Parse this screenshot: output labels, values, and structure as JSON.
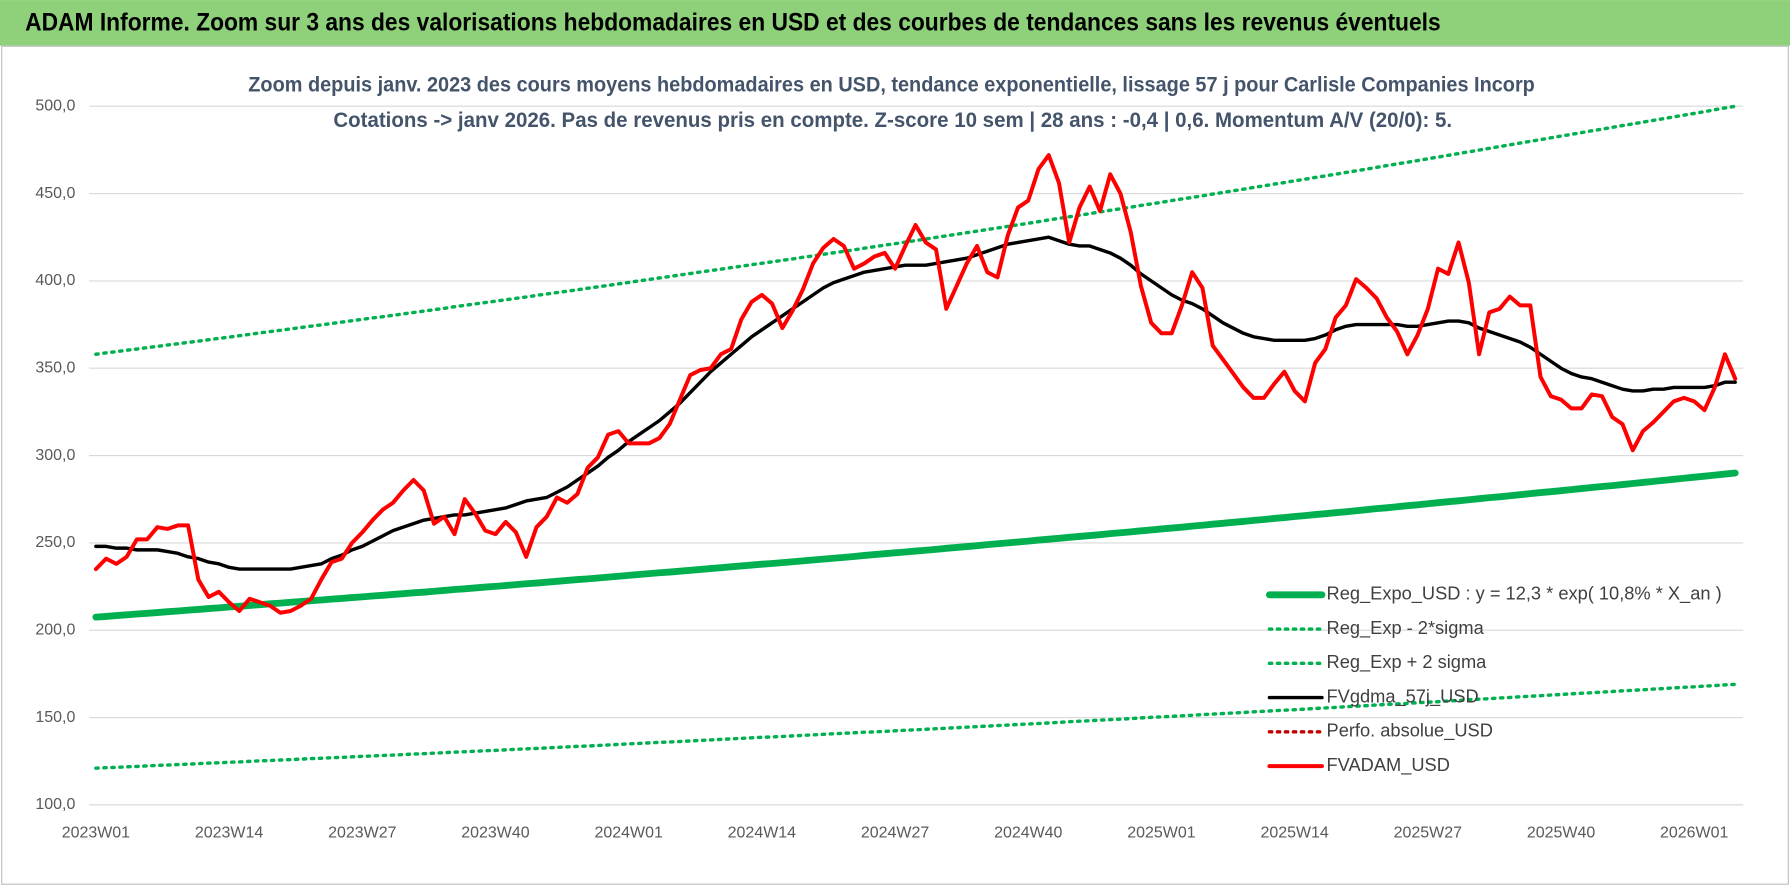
{
  "header": {
    "title": "ADAM Informe. Zoom sur 3 ans des valorisations hebdomadaires en USD et des courbes de tendances sans les revenus éventuels"
  },
  "chart_data": {
    "type": "line",
    "title": "Zoom depuis janv. 2023 des cours moyens hebdomadaires en USD, tendance exponentielle, lissage 57 j pour Carlisle Companies Incorp",
    "subtitle": "Cotations -> janv 2026. Pas de revenus pris en compte. Z-score 10 sem | 28 ans : -0,4 | 0,6. Momentum A/V (20/0): 5.",
    "categories": [
      "2023W01",
      null,
      null,
      null,
      null,
      null,
      null,
      null,
      null,
      null,
      null,
      null,
      null,
      "2023W14",
      null,
      null,
      null,
      null,
      null,
      null,
      null,
      null,
      null,
      null,
      null,
      null,
      "2023W27",
      null,
      null,
      null,
      null,
      null,
      null,
      null,
      null,
      null,
      null,
      null,
      null,
      "2023W40",
      null,
      null,
      null,
      null,
      null,
      null,
      null,
      null,
      null,
      null,
      null,
      null,
      "2024W01",
      null,
      null,
      null,
      null,
      null,
      null,
      null,
      null,
      null,
      null,
      null,
      null,
      "2024W14",
      null,
      null,
      null,
      null,
      null,
      null,
      null,
      null,
      null,
      null,
      null,
      null,
      "2024W27",
      null,
      null,
      null,
      null,
      null,
      null,
      null,
      null,
      null,
      null,
      null,
      null,
      "2024W40",
      null,
      null,
      null,
      null,
      null,
      null,
      null,
      null,
      null,
      null,
      null,
      null,
      "2025W01",
      null,
      null,
      null,
      null,
      null,
      null,
      null,
      null,
      null,
      null,
      null,
      null,
      "2025W14",
      null,
      null,
      null,
      null,
      null,
      null,
      null,
      null,
      null,
      null,
      null,
      null,
      "2025W27",
      null,
      null,
      null,
      null,
      null,
      null,
      null,
      null,
      null,
      null,
      null,
      null,
      "2025W40",
      null,
      null,
      null,
      null,
      null,
      null,
      null,
      null,
      null,
      null,
      null,
      null,
      "2026W01",
      null,
      null,
      null,
      null
    ],
    "ylim": [
      100,
      500
    ],
    "yticks": [
      {
        "value": 100,
        "label": "100,0"
      },
      {
        "value": 150,
        "label": "150,0"
      },
      {
        "value": 200,
        "label": "200,0"
      },
      {
        "value": 250,
        "label": "250,0"
      },
      {
        "value": 300,
        "label": "300,0"
      },
      {
        "value": 350,
        "label": "350,0"
      },
      {
        "value": 400,
        "label": "400,0"
      },
      {
        "value": 450,
        "label": "450,0"
      },
      {
        "value": 500,
        "label": "500,0"
      }
    ],
    "grid": true,
    "legend": "lower right",
    "series": [
      {
        "name": "Reg_Expo_USD : y = 12,3 * exp( 10,8% * X_an )",
        "color": "#00b050",
        "style": "thick",
        "values": [
          207.5,
          207.9,
          208.4,
          208.8,
          209.3,
          209.7,
          210.1,
          210.6,
          211.0,
          211.5,
          211.9,
          212.4,
          212.8,
          213.3,
          213.7,
          214.2,
          214.6,
          215.1,
          215.5,
          216.0,
          216.4,
          216.9,
          217.3,
          217.8,
          218.2,
          218.7,
          219.1,
          219.6,
          220.0,
          220.5,
          220.9,
          221.4,
          221.8,
          222.3,
          222.8,
          223.3,
          223.7,
          224.2,
          224.7,
          225.1,
          225.6,
          226.1,
          226.6,
          227.0,
          227.5,
          228.0,
          228.5,
          229.0,
          229.4,
          229.9,
          230.4,
          230.9,
          231.4,
          231.9,
          232.4,
          232.9,
          233.3,
          233.8,
          234.3,
          234.8,
          235.3,
          235.8,
          236.3,
          236.8,
          237.3,
          237.8,
          238.2,
          238.7,
          239.2,
          239.7,
          240.2,
          240.7,
          241.2,
          241.7,
          242.2,
          242.8,
          243.3,
          243.8,
          244.3,
          244.8,
          245.3,
          245.8,
          246.3,
          246.9,
          247.4,
          247.9,
          248.4,
          249.0,
          249.5,
          250.0,
          250.5,
          251.0,
          251.6,
          252.1,
          252.6,
          253.2,
          253.7,
          254.2,
          254.7,
          255.3,
          255.8,
          256.3,
          256.9,
          257.4,
          258.0,
          258.5,
          259.0,
          259.6,
          260.1,
          260.7,
          261.2,
          261.8,
          262.3,
          262.9,
          263.4,
          264.0,
          264.5,
          265.1,
          265.6,
          266.2,
          266.7,
          267.3,
          267.8,
          268.4,
          269.0,
          269.6,
          270.1,
          270.7,
          271.3,
          271.8,
          272.4,
          273.0,
          273.6,
          274.1,
          274.7,
          275.3,
          275.9,
          276.4,
          277.0,
          277.6,
          278.2,
          278.8,
          279.3,
          279.9,
          280.5,
          281.1,
          281.7,
          282.3,
          282.8,
          283.4,
          284.0,
          284.6,
          285.2,
          285.8,
          286.4,
          287.0,
          287.6,
          288.2,
          288.8,
          289.4,
          290.0
        ]
      },
      {
        "name": "Reg_Exp - 2*sigma",
        "color": "#00b050",
        "style": "dotted",
        "values": [
          121.0,
          121.3,
          121.5,
          121.8,
          122.0,
          122.3,
          122.6,
          122.8,
          123.1,
          123.3,
          123.6,
          123.9,
          124.1,
          124.4,
          124.6,
          124.9,
          125.2,
          125.4,
          125.7,
          125.9,
          126.2,
          126.5,
          126.7,
          127.0,
          127.2,
          127.5,
          127.8,
          128.0,
          128.3,
          128.5,
          128.8,
          129.1,
          129.3,
          129.6,
          129.9,
          130.2,
          130.4,
          130.7,
          131.0,
          131.2,
          131.5,
          131.8,
          132.1,
          132.3,
          132.6,
          132.9,
          133.2,
          133.5,
          133.7,
          134.0,
          134.3,
          134.6,
          134.9,
          135.2,
          135.5,
          135.8,
          136.0,
          136.3,
          136.6,
          136.9,
          137.2,
          137.5,
          137.8,
          138.1,
          138.4,
          138.7,
          138.9,
          139.2,
          139.5,
          139.8,
          140.1,
          140.4,
          140.7,
          141.0,
          141.3,
          141.6,
          141.8,
          142.1,
          142.4,
          142.7,
          143.0,
          143.3,
          143.6,
          143.9,
          144.2,
          144.5,
          144.8,
          145.1,
          145.4,
          145.7,
          146.0,
          146.3,
          146.6,
          146.9,
          147.2,
          147.6,
          147.9,
          148.2,
          148.5,
          148.8,
          149.1,
          149.4,
          149.8,
          150.1,
          150.4,
          150.7,
          151.0,
          151.3,
          151.7,
          152.0,
          152.3,
          152.6,
          152.9,
          153.3,
          153.6,
          153.9,
          154.2,
          154.5,
          154.8,
          155.2,
          155.5,
          155.8,
          156.2,
          156.5,
          156.8,
          157.2,
          157.5,
          157.8,
          158.1,
          158.5,
          158.8,
          159.1,
          159.5,
          159.8,
          160.2,
          160.5,
          160.8,
          161.2,
          161.5,
          161.9,
          162.2,
          162.5,
          162.9,
          163.2,
          163.6,
          163.9,
          164.2,
          164.6,
          164.9,
          165.3,
          165.6,
          165.9,
          166.3,
          166.6,
          167.0,
          167.3,
          167.6,
          168.0,
          168.3,
          168.7,
          169.0
        ]
      },
      {
        "name": "Reg_Exp + 2 sigma",
        "color": "#00b050",
        "style": "dotted",
        "values": [
          358.0,
          358.8,
          359.5,
          360.3,
          361.0,
          361.8,
          362.5,
          363.3,
          364.0,
          364.8,
          365.5,
          366.3,
          367.1,
          367.8,
          368.6,
          369.4,
          370.2,
          371.0,
          371.7,
          372.5,
          373.3,
          374.1,
          374.8,
          375.6,
          376.4,
          377.2,
          378.0,
          378.8,
          379.5,
          380.3,
          381.1,
          381.9,
          382.7,
          383.5,
          384.3,
          385.2,
          386.0,
          386.8,
          387.6,
          388.4,
          389.2,
          390.0,
          390.8,
          391.7,
          392.5,
          393.3,
          394.1,
          394.9,
          395.8,
          396.6,
          397.4,
          398.3,
          399.1,
          400.0,
          400.8,
          401.7,
          402.5,
          403.4,
          404.2,
          405.1,
          405.9,
          406.7,
          407.6,
          408.4,
          409.3,
          410.1,
          410.9,
          411.8,
          412.6,
          413.5,
          414.3,
          415.2,
          416.1,
          416.9,
          417.8,
          418.7,
          419.6,
          420.5,
          421.3,
          422.2,
          423.1,
          424.0,
          424.9,
          425.8,
          426.7,
          427.6,
          428.5,
          429.4,
          430.3,
          431.2,
          432.1,
          433.0,
          433.9,
          434.9,
          435.8,
          436.7,
          437.6,
          438.5,
          439.5,
          440.4,
          441.3,
          442.2,
          443.2,
          444.1,
          445.0,
          446.0,
          446.9,
          447.8,
          448.7,
          449.7,
          450.6,
          451.6,
          452.5,
          453.5,
          454.4,
          455.4,
          456.3,
          457.3,
          458.2,
          459.2,
          460.1,
          461.1,
          462.1,
          463.0,
          464.0,
          465.0,
          466.0,
          467.0,
          467.9,
          468.9,
          469.9,
          470.9,
          471.9,
          472.9,
          473.9,
          474.9,
          475.9,
          476.9,
          477.9,
          478.9,
          479.9,
          480.9,
          481.9,
          482.9,
          483.9,
          484.9,
          485.9,
          486.9,
          487.9,
          488.9,
          489.9,
          490.9,
          491.9,
          492.9,
          493.9,
          494.9,
          495.9,
          496.9,
          498.0,
          499.0,
          500.0
        ]
      },
      {
        "name": "FVgdma_57j_USD",
        "color": "#000000",
        "style": "solid",
        "values": [
          248,
          248,
          247,
          247,
          246,
          246,
          246,
          245,
          244,
          242,
          241,
          239,
          238,
          236,
          235,
          235,
          235,
          235,
          235,
          235,
          236,
          237,
          238,
          241,
          243,
          246,
          248,
          251,
          254,
          257,
          259,
          261,
          263,
          264,
          265,
          266,
          266,
          267,
          268,
          269,
          270,
          272,
          274,
          275,
          276,
          279,
          282,
          286,
          290,
          294,
          299,
          303,
          308,
          312,
          316,
          320,
          325,
          330,
          336,
          342,
          348,
          353,
          358,
          363,
          368,
          372,
          376,
          380,
          384,
          388,
          392,
          396,
          399,
          401,
          403,
          405,
          406,
          407,
          408,
          409,
          409,
          409,
          410,
          411,
          412,
          413,
          415,
          417,
          419,
          421,
          422,
          423,
          424,
          425,
          423,
          421,
          420,
          420,
          418,
          416,
          413,
          409,
          404,
          400,
          396,
          392,
          389,
          387,
          384,
          380,
          376,
          373,
          370,
          368,
          367,
          366,
          366,
          366,
          366,
          367,
          369,
          372,
          374,
          375,
          375,
          375,
          375,
          375,
          374,
          374,
          375,
          376,
          377,
          377,
          376,
          373,
          371,
          369,
          367,
          365,
          362,
          358,
          354,
          350,
          347,
          345,
          344,
          342,
          340,
          338,
          337,
          337,
          338,
          338,
          339,
          339,
          339,
          339,
          340,
          342,
          342
        ]
      },
      {
        "name": "Perfo. absolue_USD",
        "color": "#c00000",
        "style": "dotted",
        "values": [
          null,
          null,
          null,
          null,
          null,
          null,
          null,
          null,
          null,
          null,
          null,
          null,
          null,
          null,
          null,
          null,
          null,
          null,
          null,
          null,
          null,
          null,
          null,
          null,
          null,
          null,
          null,
          null,
          null,
          null,
          null,
          null,
          null,
          null,
          null,
          null,
          null,
          null,
          null,
          null,
          null,
          null,
          null,
          null,
          null,
          null,
          null,
          null,
          null,
          null,
          null,
          null,
          null,
          null,
          null,
          null,
          null,
          null,
          null,
          null,
          null,
          null,
          null,
          null,
          null,
          null,
          null,
          null,
          null,
          null,
          null,
          null,
          null,
          null,
          null,
          null,
          null,
          null,
          null,
          null,
          null,
          null,
          null,
          null,
          null,
          null,
          null,
          null,
          null,
          null,
          null,
          null,
          null,
          null,
          null,
          null,
          null,
          null,
          null,
          null,
          null,
          null,
          null,
          null,
          null,
          null,
          null,
          null,
          null,
          null,
          null,
          null,
          null,
          null,
          null,
          null,
          null,
          null,
          null,
          null,
          null,
          null,
          null,
          null,
          null,
          null,
          null,
          null,
          null,
          null,
          null,
          null,
          null,
          null,
          null,
          null,
          null,
          null,
          null,
          null,
          null,
          null,
          null,
          null,
          null,
          null,
          null,
          null,
          null,
          null,
          null,
          null,
          null,
          null,
          null,
          null,
          null,
          null,
          null,
          null,
          null
        ]
      },
      {
        "name": "FVADAM_USD",
        "color": "#ff0000",
        "style": "solid",
        "values": [
          235,
          241,
          238,
          242,
          252,
          252,
          259,
          258,
          260,
          260,
          229,
          219,
          222,
          216,
          211,
          218,
          216,
          214,
          210,
          211,
          214,
          218,
          229,
          239,
          241,
          250,
          256,
          263,
          269,
          273,
          280,
          286,
          280,
          261,
          265,
          255,
          275,
          267,
          257,
          255,
          262,
          256,
          242,
          259,
          265,
          276,
          273,
          278,
          293,
          299,
          312,
          314,
          307,
          307,
          307,
          310,
          318,
          332,
          346,
          349,
          350,
          358,
          361,
          378,
          388,
          392,
          387,
          373,
          383,
          395,
          410,
          419,
          424,
          420,
          407,
          410,
          414,
          416,
          407,
          420,
          432,
          422,
          418,
          384,
          397,
          410,
          420,
          405,
          402,
          426,
          442,
          446,
          464,
          472,
          456,
          422,
          442,
          454,
          440,
          461,
          450,
          428,
          397,
          376,
          370,
          370,
          386,
          405,
          396,
          363,
          355,
          347,
          339,
          333,
          333,
          341,
          348,
          337,
          331,
          353,
          361,
          379,
          386,
          401,
          396,
          390,
          379,
          371,
          358,
          369,
          384,
          407,
          404,
          422,
          399,
          358,
          382,
          384,
          391,
          386,
          386,
          345,
          334,
          332,
          327,
          327,
          335,
          334,
          322,
          318,
          303,
          314,
          319,
          325,
          331,
          333,
          331,
          326,
          339,
          358,
          344
        ]
      }
    ]
  }
}
